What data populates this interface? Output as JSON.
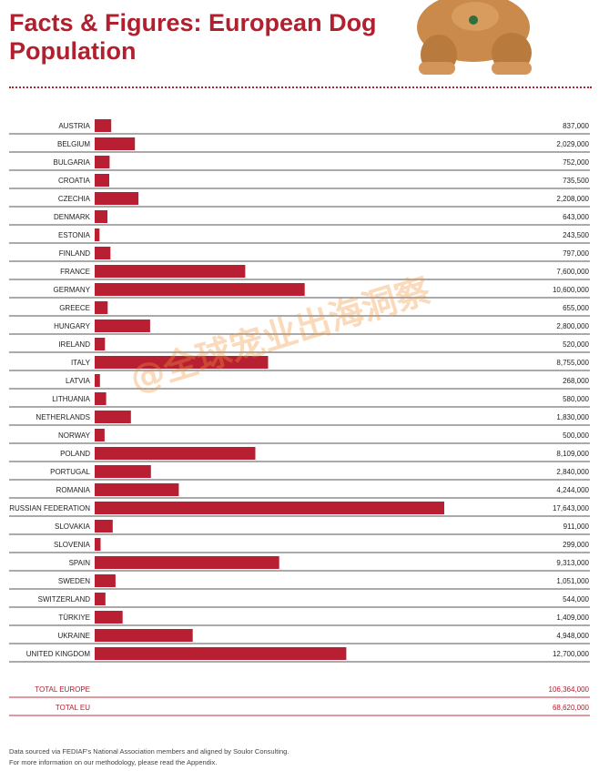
{
  "page": {
    "title": "Facts & Figures: European Dog Population",
    "watermark": "@全球宠业出海洞察",
    "footnotes": [
      "Data sourced via FEDIAF's National Association members and aligned by Soulor Consulting.",
      "For more information on our methodology, please read the Appendix."
    ]
  },
  "colors": {
    "accent": "#b0202f",
    "bar": "#b81f32",
    "rule": "#555555",
    "total_rule": "#c0303c"
  },
  "chart_data": {
    "type": "bar",
    "orientation": "horizontal",
    "title": "Facts & Figures: European Dog Population",
    "xlabel": "",
    "ylabel": "",
    "xlim": [
      0,
      18150000
    ],
    "grid": false,
    "legend": "none",
    "categories": [
      "AUSTRIA",
      "BELGIUM",
      "BULGARIA",
      "CROATIA",
      "CZECHIA",
      "DENMARK",
      "ESTONIA",
      "FINLAND",
      "FRANCE",
      "GERMANY",
      "GREECE",
      "HUNGARY",
      "IRELAND",
      "ITALY",
      "LATVIA",
      "LITHUANIA",
      "NETHERLANDS",
      "NORWAY",
      "POLAND",
      "PORTUGAL",
      "ROMANIA",
      "RUSSIAN FEDERATION",
      "SLOVAKIA",
      "SLOVENIA",
      "SPAIN",
      "SWEDEN",
      "SWITZERLAND",
      "TÜRKIYE",
      "UKRAINE",
      "UNITED KINGDOM"
    ],
    "values": [
      837000,
      2029000,
      752000,
      735500,
      2208000,
      643000,
      243500,
      797000,
      7600000,
      10600000,
      655000,
      2800000,
      520000,
      8755000,
      268000,
      580000,
      1830000,
      500000,
      8109000,
      2840000,
      4244000,
      17643000,
      911000,
      299000,
      9313000,
      1051000,
      544000,
      1409000,
      4948000,
      12700000
    ],
    "value_labels": [
      "837,000",
      "2,029,000",
      "752,000",
      "735,500",
      "2,208,000",
      "643,000",
      "243,500",
      "797,000",
      "7,600,000",
      "10,600,000",
      "655,000",
      "2,800,000",
      "520,000",
      "8,755,000",
      "268,000",
      "580,000",
      "1,830,000",
      "500,000",
      "8,109,000",
      "2,840,000",
      "4,244,000",
      "17,643,000",
      "911,000",
      "299,000",
      "9,313,000",
      "1,051,000",
      "544,000",
      "1,409,000",
      "4,948,000",
      "12,700,000"
    ],
    "totals": [
      {
        "label": "TOTAL EUROPE",
        "value_label": "106,364,000"
      },
      {
        "label": "TOTAL EU",
        "value_label": "68,620,000"
      }
    ]
  }
}
